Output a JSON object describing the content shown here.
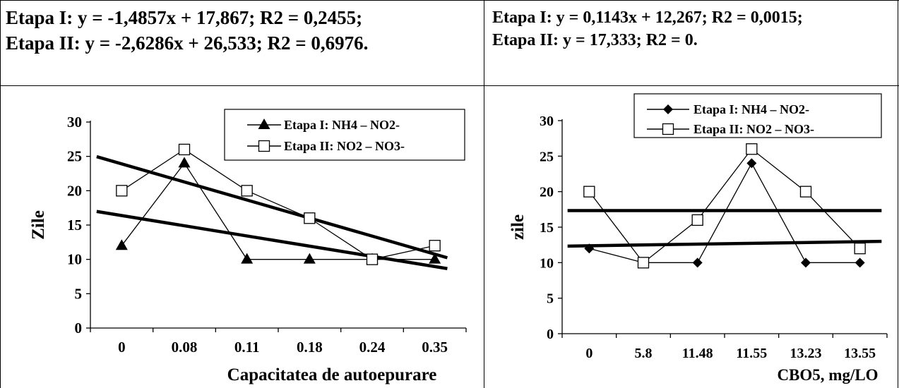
{
  "left_panel": {
    "equation_1": "Etapa I: y = -1,4857x + 17,867; R2 = 0,2455;",
    "equation_2": "Etapa II: y = -2,6286x + 26,533; R2 = 0,6976."
  },
  "right_panel": {
    "equation_1": "Etapa I: y = 0,1143x + 12,267; R2 = 0,0015;",
    "equation_2": "Etapa II: y = 17,333; R2 = 0."
  },
  "chart_data": [
    {
      "type": "line",
      "categories": [
        "0",
        "0.08",
        "0.11",
        "0.18",
        "0.24",
        "0.35"
      ],
      "series": [
        {
          "name": "Etapa I: NH4 – NO2-",
          "values": [
            12,
            24,
            10,
            10,
            10,
            10
          ],
          "marker": "triangle"
        },
        {
          "name": "Etapa II: NO2 – NO3-",
          "values": [
            20,
            26,
            20,
            16,
            10,
            12
          ],
          "marker": "square"
        }
      ],
      "trendlines": [
        {
          "series": "Etapa I: NH4 – NO2-",
          "slope": -1.4857,
          "intercept": 17.867
        },
        {
          "series": "Etapa II: NO2 – NO3-",
          "slope": -2.6286,
          "intercept": 26.533
        }
      ],
      "xlabel": "Capacitatea de autoepurare",
      "ylabel": "Zile",
      "ylim": [
        0,
        30
      ],
      "yticks": [
        "0",
        "5",
        "10",
        "15",
        "20",
        "25",
        "30"
      ],
      "legend": "top-right",
      "grid": false
    },
    {
      "type": "line",
      "categories": [
        "0",
        "5.8",
        "11.48",
        "11.55",
        "13.23",
        "13.55"
      ],
      "series": [
        {
          "name": "Etapa I: NH4 – NO2-",
          "values": [
            12,
            10,
            10,
            24,
            10,
            10
          ],
          "marker": "diamond"
        },
        {
          "name": "Etapa II: NO2 – NO3-",
          "values": [
            20,
            10,
            16,
            26,
            20,
            12
          ],
          "marker": "square"
        }
      ],
      "trendlines": [
        {
          "series": "Etapa I: NH4 – NO2-",
          "slope": 0.1143,
          "intercept": 12.267
        },
        {
          "series": "Etapa II: NO2 – NO3-",
          "slope": 0,
          "intercept": 17.333
        }
      ],
      "xlabel": "CBO5, mg/LO",
      "ylabel": "zile",
      "ylim": [
        0,
        30
      ],
      "yticks": [
        "0",
        "5",
        "10",
        "15",
        "20",
        "25",
        "30"
      ],
      "legend": "top",
      "grid": false
    }
  ]
}
